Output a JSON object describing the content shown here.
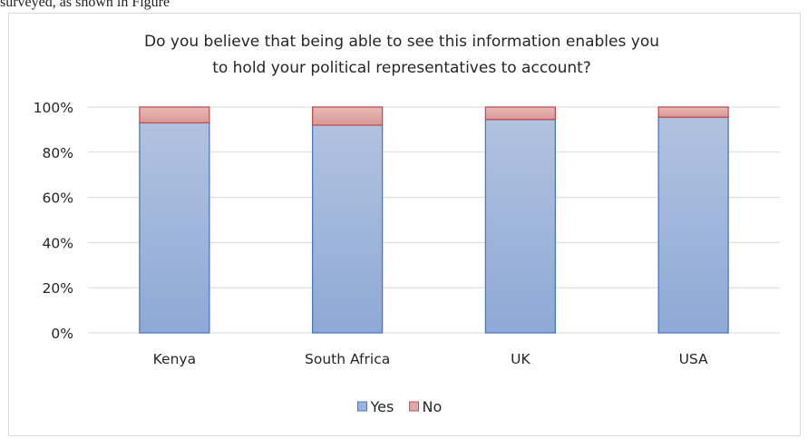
{
  "page": {
    "top_text": "surveyed, as shown in Figure"
  },
  "chart_data": {
    "type": "bar",
    "stacked": true,
    "title_lines": [
      "Do you believe that being able to see this information enables you",
      "to hold your political representatives to account?"
    ],
    "categories": [
      "Kenya",
      "South Africa",
      "UK",
      "USA"
    ],
    "series": [
      {
        "name": "Yes",
        "values": [
          93,
          92,
          94.5,
          95.5
        ],
        "color": "#9db3d9",
        "stroke": "#4a78c0"
      },
      {
        "name": "No",
        "values": [
          7,
          8,
          5.5,
          4.5
        ],
        "color": "#e0a9a9",
        "stroke": "#c0504d"
      }
    ],
    "y_ticks": [
      "0%",
      "20%",
      "40%",
      "60%",
      "80%",
      "100%"
    ],
    "ylim": [
      0,
      100
    ],
    "grid": true,
    "legend": "bottom"
  }
}
